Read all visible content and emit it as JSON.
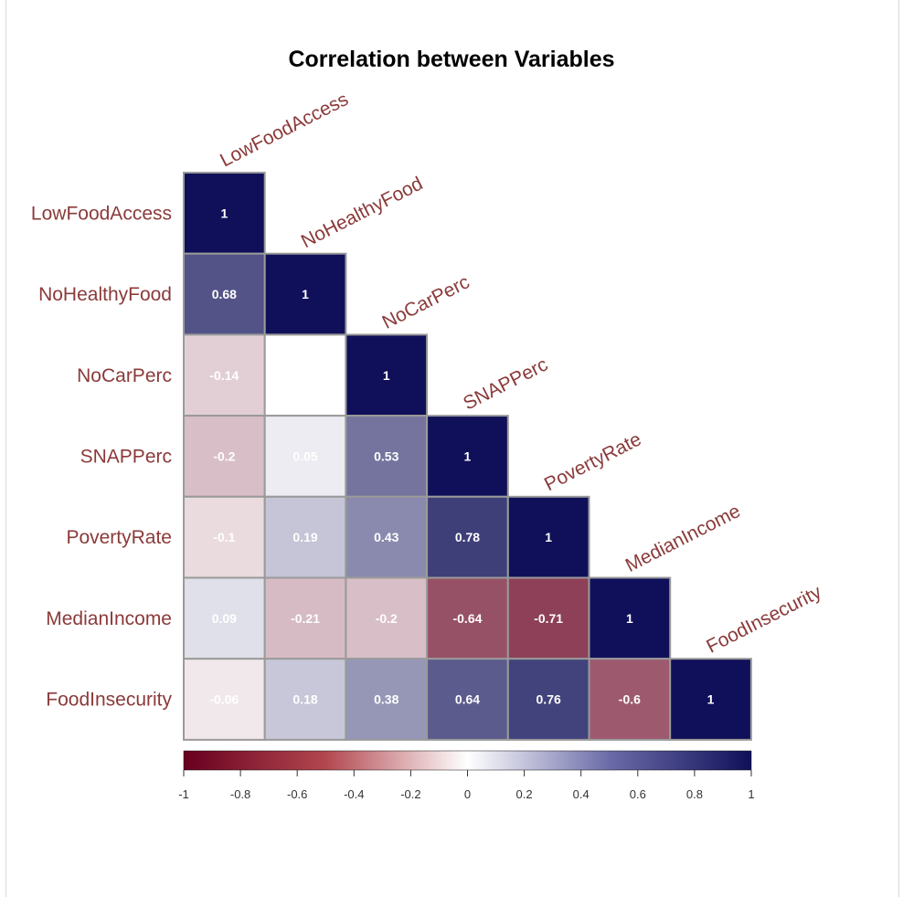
{
  "chart_data": {
    "type": "heatmap",
    "title": "Correlation between Variables",
    "variables": [
      "LowFoodAccess",
      "NoHealthyFood",
      "NoCarPerc",
      "SNAPPerc",
      "PovertyRate",
      "MedianIncome",
      "FoodInsecurity"
    ],
    "matrix_lower": [
      [
        1
      ],
      [
        0.68,
        1
      ],
      [
        -0.14,
        null,
        1
      ],
      [
        -0.2,
        0.05,
        0.53,
        1
      ],
      [
        -0.1,
        0.19,
        0.43,
        0.78,
        1
      ],
      [
        0.09,
        -0.21,
        -0.2,
        -0.64,
        -0.71,
        1
      ],
      [
        -0.06,
        0.18,
        0.38,
        0.64,
        0.76,
        -0.6,
        1
      ]
    ],
    "colorbar": {
      "range": [
        -1,
        1
      ],
      "ticks": [
        "-1",
        "-0.8",
        "-0.6",
        "-0.4",
        "-0.2",
        "0",
        "0.2",
        "0.4",
        "0.6",
        "0.8",
        "1"
      ],
      "colors": {
        "negative": "#67001f",
        "zero": "#ffffff",
        "positive": "#10105a"
      }
    },
    "label_color": "#8b3a3a"
  }
}
